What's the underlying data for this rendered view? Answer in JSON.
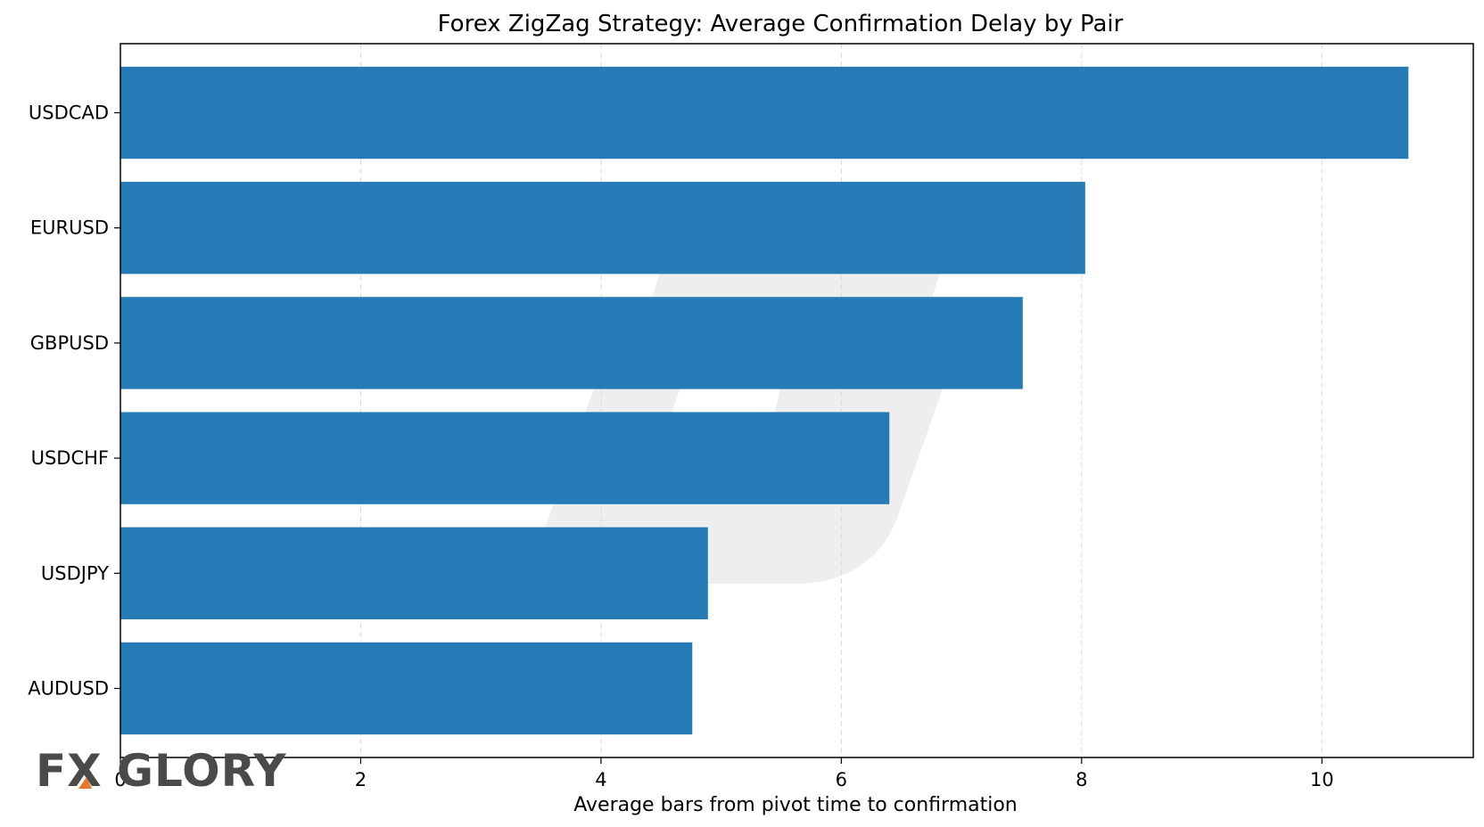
{
  "chart_data": {
    "type": "bar",
    "orientation": "horizontal",
    "title": "Forex ZigZag Strategy: Average Confirmation Delay by Pair",
    "xlabel": "Average bars from pivot time to confirmation",
    "ylabel": "",
    "categories": [
      "USDCAD",
      "EURUSD",
      "GBPUSD",
      "USDCHF",
      "USDJPY",
      "AUDUSD"
    ],
    "values": [
      10.72,
      8.03,
      7.51,
      6.4,
      4.89,
      4.76
    ],
    "xlim": [
      0,
      11.26
    ],
    "xticks": [
      0,
      2,
      4,
      6,
      8,
      10
    ],
    "xtick_labels": [
      "0",
      "2",
      "4",
      "6",
      "8",
      "10"
    ],
    "grid": {
      "x": true,
      "y": false,
      "style": "dashed"
    },
    "bar_color": "#1f77b4"
  },
  "watermark": {
    "logo_text_left": "FX",
    "logo_text_right": "GLORY",
    "text_color": "#4a4a4a",
    "accent_color": "#e8782a",
    "emblem_color": "#cfcfcf"
  }
}
